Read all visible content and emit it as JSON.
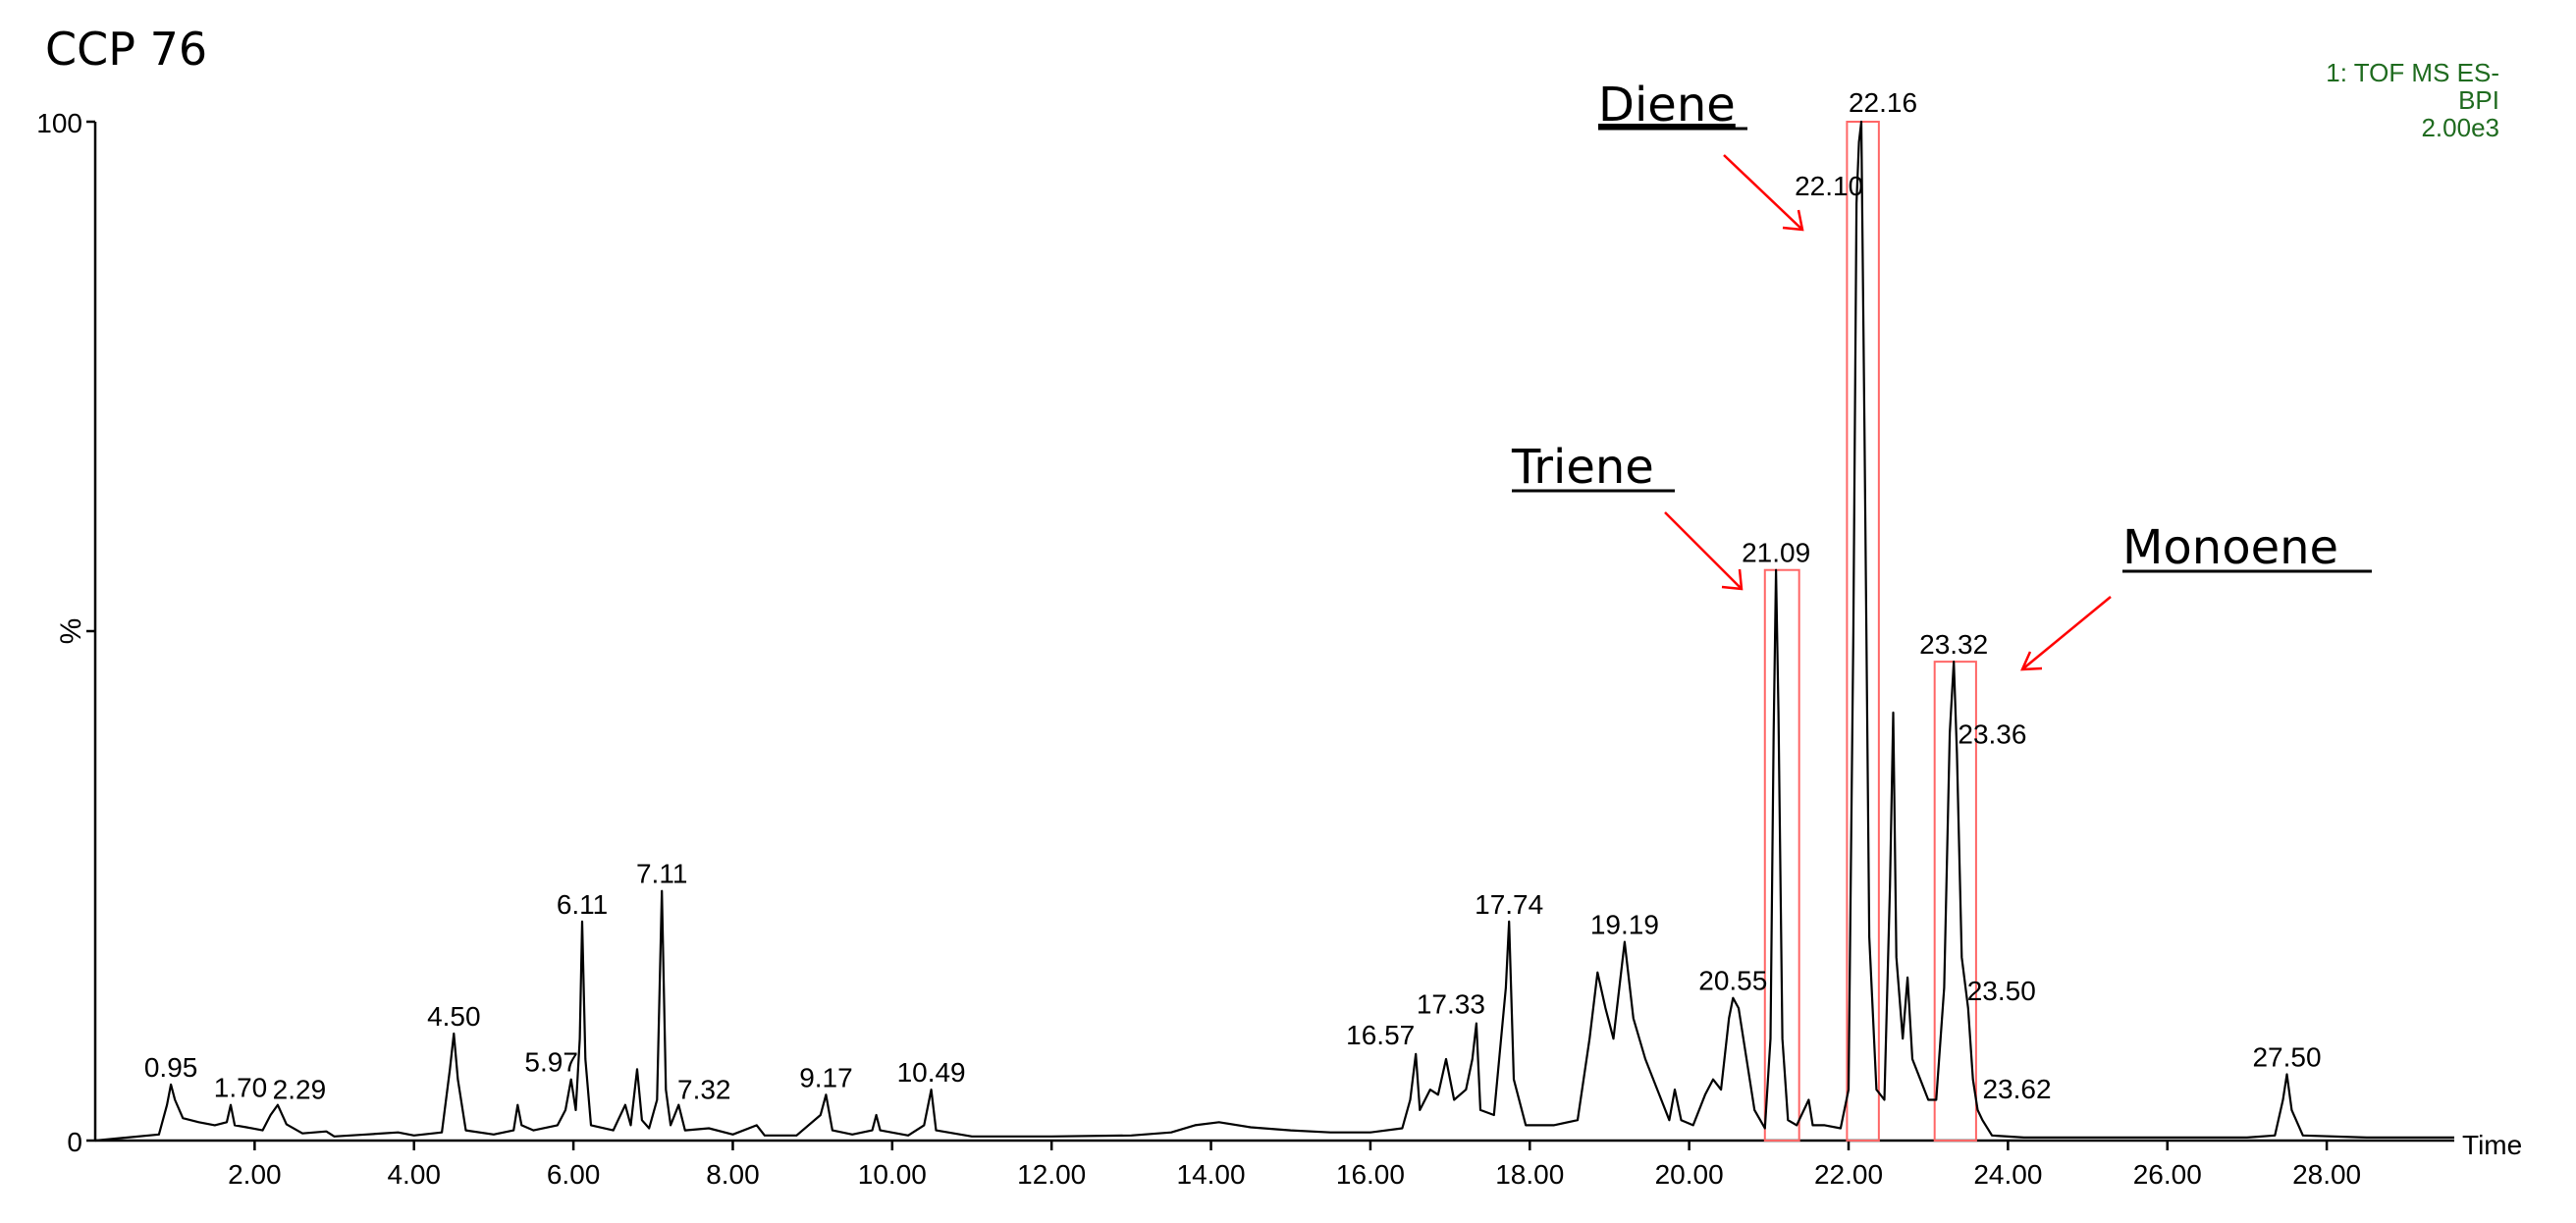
{
  "chart_data": {
    "type": "line",
    "title": "CCP 76",
    "ylabel": "%",
    "xlabel": "Time",
    "xlim": [
      0,
      29.6
    ],
    "ylim": [
      0,
      100
    ],
    "x_ticks": [
      "2.00",
      "4.00",
      "6.00",
      "8.00",
      "10.00",
      "12.00",
      "14.00",
      "16.00",
      "18.00",
      "20.00",
      "22.00",
      "24.00",
      "26.00",
      "28.00"
    ],
    "y_ticks": [
      "0",
      "%",
      "100"
    ],
    "instrument_info": [
      "1: TOF MS ES-",
      "BPI",
      "2.00e3"
    ],
    "grid": false,
    "peaks": [
      {
        "x": 0.95,
        "y": 5.5,
        "label": "0.95"
      },
      {
        "x": 1.7,
        "y": 3.5,
        "label": "1.70"
      },
      {
        "x": 2.29,
        "y": 3.5,
        "label": "2.29"
      },
      {
        "x": 4.5,
        "y": 10.5,
        "label": "4.50"
      },
      {
        "x": 5.97,
        "y": 6.0,
        "label": "5.97"
      },
      {
        "x": 6.11,
        "y": 21.5,
        "label": "6.11"
      },
      {
        "x": 7.11,
        "y": 24.5,
        "label": "7.11"
      },
      {
        "x": 7.32,
        "y": 3.5,
        "label": "7.32"
      },
      {
        "x": 9.17,
        "y": 4.5,
        "label": "9.17"
      },
      {
        "x": 10.49,
        "y": 5.0,
        "label": "10.49"
      },
      {
        "x": 16.57,
        "y": 8.5,
        "label": "16.57"
      },
      {
        "x": 17.33,
        "y": 11.5,
        "label": "17.33"
      },
      {
        "x": 17.74,
        "y": 21.5,
        "label": "17.74"
      },
      {
        "x": 19.19,
        "y": 19.5,
        "label": "19.19"
      },
      {
        "x": 20.55,
        "y": 14.0,
        "label": "20.55"
      },
      {
        "x": 21.09,
        "y": 56.0,
        "label": "21.09"
      },
      {
        "x": 22.1,
        "y": 92.0,
        "label": "22.10"
      },
      {
        "x": 22.16,
        "y": 100.0,
        "label": "22.16"
      },
      {
        "x": 23.32,
        "y": 47.0,
        "label": "23.32"
      },
      {
        "x": 23.36,
        "y": 38.0,
        "label": "23.36"
      },
      {
        "x": 23.5,
        "y": 13.0,
        "label": "23.50"
      },
      {
        "x": 23.62,
        "y": 3.0,
        "label": "23.62"
      },
      {
        "x": 27.5,
        "y": 6.5,
        "label": "27.50"
      }
    ],
    "trace": [
      [
        0.0,
        0.0
      ],
      [
        0.8,
        0.6
      ],
      [
        0.9,
        3.5
      ],
      [
        0.95,
        5.5
      ],
      [
        1.0,
        4.0
      ],
      [
        1.1,
        2.2
      ],
      [
        1.3,
        1.8
      ],
      [
        1.5,
        1.5
      ],
      [
        1.65,
        1.8
      ],
      [
        1.7,
        3.5
      ],
      [
        1.75,
        1.5
      ],
      [
        1.9,
        1.3
      ],
      [
        2.1,
        1.0
      ],
      [
        2.2,
        2.5
      ],
      [
        2.29,
        3.5
      ],
      [
        2.4,
        1.6
      ],
      [
        2.6,
        0.7
      ],
      [
        2.9,
        0.9
      ],
      [
        3.0,
        0.4
      ],
      [
        3.4,
        0.6
      ],
      [
        3.8,
        0.8
      ],
      [
        4.0,
        0.5
      ],
      [
        4.35,
        0.8
      ],
      [
        4.45,
        7.0
      ],
      [
        4.5,
        10.5
      ],
      [
        4.55,
        6.0
      ],
      [
        4.65,
        1.0
      ],
      [
        5.0,
        0.6
      ],
      [
        5.25,
        1.0
      ],
      [
        5.3,
        3.5
      ],
      [
        5.35,
        1.5
      ],
      [
        5.5,
        1.0
      ],
      [
        5.8,
        1.5
      ],
      [
        5.9,
        3.0
      ],
      [
        5.97,
        6.0
      ],
      [
        6.03,
        3.0
      ],
      [
        6.08,
        10.0
      ],
      [
        6.11,
        21.5
      ],
      [
        6.15,
        8.0
      ],
      [
        6.22,
        1.5
      ],
      [
        6.5,
        1.0
      ],
      [
        6.65,
        3.5
      ],
      [
        6.72,
        1.5
      ],
      [
        6.8,
        7.0
      ],
      [
        6.86,
        2.0
      ],
      [
        6.95,
        1.2
      ],
      [
        7.05,
        4.0
      ],
      [
        7.11,
        24.5
      ],
      [
        7.16,
        5.0
      ],
      [
        7.22,
        1.5
      ],
      [
        7.32,
        3.5
      ],
      [
        7.4,
        1.0
      ],
      [
        7.7,
        1.2
      ],
      [
        8.0,
        0.6
      ],
      [
        8.3,
        1.5
      ],
      [
        8.4,
        0.5
      ],
      [
        8.8,
        0.5
      ],
      [
        9.1,
        2.5
      ],
      [
        9.17,
        4.5
      ],
      [
        9.25,
        1.0
      ],
      [
        9.5,
        0.6
      ],
      [
        9.75,
        1.0
      ],
      [
        9.8,
        2.5
      ],
      [
        9.85,
        1.0
      ],
      [
        10.2,
        0.5
      ],
      [
        10.4,
        1.5
      ],
      [
        10.49,
        5.0
      ],
      [
        10.55,
        1.0
      ],
      [
        11.0,
        0.4
      ],
      [
        12.0,
        0.4
      ],
      [
        13.0,
        0.5
      ],
      [
        13.5,
        0.8
      ],
      [
        13.8,
        1.5
      ],
      [
        14.1,
        1.8
      ],
      [
        14.5,
        1.3
      ],
      [
        15.0,
        1.0
      ],
      [
        15.5,
        0.8
      ],
      [
        16.0,
        0.8
      ],
      [
        16.4,
        1.2
      ],
      [
        16.5,
        4.0
      ],
      [
        16.57,
        8.5
      ],
      [
        16.62,
        3.0
      ],
      [
        16.75,
        5.0
      ],
      [
        16.85,
        4.5
      ],
      [
        16.95,
        8.0
      ],
      [
        17.05,
        4.0
      ],
      [
        17.2,
        5.0
      ],
      [
        17.28,
        8.0
      ],
      [
        17.33,
        11.5
      ],
      [
        17.38,
        3.0
      ],
      [
        17.55,
        2.5
      ],
      [
        17.7,
        15.0
      ],
      [
        17.74,
        21.5
      ],
      [
        17.8,
        6.0
      ],
      [
        17.95,
        1.5
      ],
      [
        18.3,
        1.5
      ],
      [
        18.6,
        2.0
      ],
      [
        18.75,
        10.0
      ],
      [
        18.85,
        16.5
      ],
      [
        18.95,
        13.0
      ],
      [
        19.05,
        10.0
      ],
      [
        19.19,
        19.5
      ],
      [
        19.3,
        12.0
      ],
      [
        19.45,
        8.0
      ],
      [
        19.6,
        5.0
      ],
      [
        19.75,
        2.0
      ],
      [
        19.82,
        5.0
      ],
      [
        19.9,
        2.0
      ],
      [
        20.05,
        1.5
      ],
      [
        20.2,
        4.5
      ],
      [
        20.3,
        6.0
      ],
      [
        20.4,
        5.0
      ],
      [
        20.5,
        12.0
      ],
      [
        20.55,
        14.0
      ],
      [
        20.62,
        13.0
      ],
      [
        20.72,
        8.0
      ],
      [
        20.82,
        3.0
      ],
      [
        20.95,
        1.2
      ],
      [
        21.02,
        10.0
      ],
      [
        21.06,
        40.0
      ],
      [
        21.09,
        56.0
      ],
      [
        21.12,
        42.0
      ],
      [
        21.17,
        10.0
      ],
      [
        21.24,
        2.0
      ],
      [
        21.35,
        1.5
      ],
      [
        21.5,
        4.0
      ],
      [
        21.55,
        1.5
      ],
      [
        21.7,
        1.5
      ],
      [
        21.9,
        1.2
      ],
      [
        22.0,
        5.0
      ],
      [
        22.06,
        50.0
      ],
      [
        22.1,
        92.0
      ],
      [
        22.13,
        98.0
      ],
      [
        22.16,
        100.0
      ],
      [
        22.2,
        70.0
      ],
      [
        22.26,
        20.0
      ],
      [
        22.35,
        5.0
      ],
      [
        22.45,
        4.0
      ],
      [
        22.52,
        25.0
      ],
      [
        22.56,
        42.0
      ],
      [
        22.6,
        18.0
      ],
      [
        22.68,
        10.0
      ],
      [
        22.74,
        16.0
      ],
      [
        22.8,
        8.0
      ],
      [
        22.9,
        6.0
      ],
      [
        23.0,
        4.0
      ],
      [
        23.1,
        4.0
      ],
      [
        23.2,
        15.0
      ],
      [
        23.27,
        40.0
      ],
      [
        23.32,
        47.0
      ],
      [
        23.36,
        38.0
      ],
      [
        23.42,
        18.0
      ],
      [
        23.5,
        13.0
      ],
      [
        23.56,
        6.0
      ],
      [
        23.62,
        3.0
      ],
      [
        23.68,
        2.0
      ],
      [
        23.8,
        0.5
      ],
      [
        24.2,
        0.3
      ],
      [
        25.0,
        0.3
      ],
      [
        26.0,
        0.3
      ],
      [
        27.0,
        0.3
      ],
      [
        27.35,
        0.5
      ],
      [
        27.45,
        4.0
      ],
      [
        27.5,
        6.5
      ],
      [
        27.56,
        3.0
      ],
      [
        27.7,
        0.5
      ],
      [
        28.5,
        0.3
      ],
      [
        29.6,
        0.3
      ]
    ],
    "annotations": [
      {
        "label": "Diene",
        "box_x": [
          21.98,
          22.38
        ]
      },
      {
        "label": "Triene",
        "box_x": [
          20.95,
          21.38
        ]
      },
      {
        "label": "Monoene",
        "box_x": [
          23.08,
          23.6
        ]
      }
    ],
    "annotation_box_ylim": [
      0,
      100
    ],
    "colors": {
      "trace": "#000000",
      "annotation": "#ff0000",
      "instrument_info": "#1f6b1f",
      "box": "#ff6666"
    }
  }
}
